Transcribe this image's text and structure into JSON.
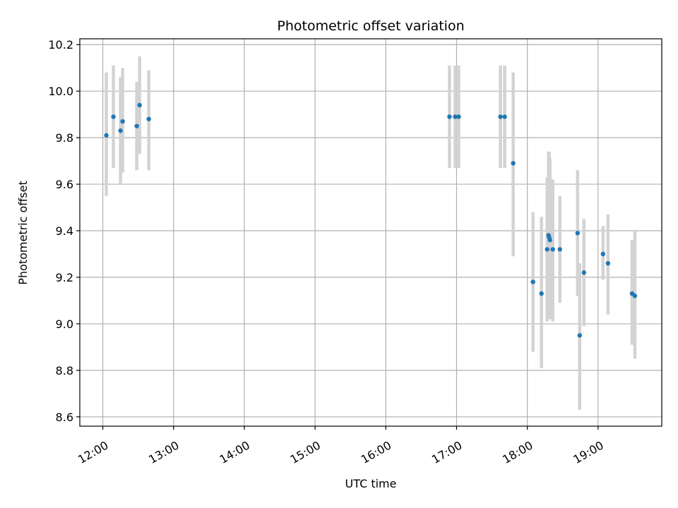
{
  "chart_data": {
    "type": "scatter",
    "title": "Photometric offset variation",
    "xlabel": "UTC time",
    "ylabel": "Photometric offset",
    "x_unit": "hours",
    "xlim": [
      11.675,
      19.9
    ],
    "ylim": [
      8.56,
      10.225
    ],
    "grid": true,
    "x_ticks": [
      {
        "value": 12,
        "label": "12:00"
      },
      {
        "value": 13,
        "label": "13:00"
      },
      {
        "value": 14,
        "label": "14:00"
      },
      {
        "value": 15,
        "label": "15:00"
      },
      {
        "value": 16,
        "label": "16:00"
      },
      {
        "value": 17,
        "label": "17:00"
      },
      {
        "value": 18,
        "label": "18:00"
      },
      {
        "value": 19,
        "label": "19:00"
      }
    ],
    "y_ticks": [
      {
        "value": 8.6,
        "label": "8.6"
      },
      {
        "value": 8.8,
        "label": "8.8"
      },
      {
        "value": 9.0,
        "label": "9.0"
      },
      {
        "value": 9.2,
        "label": "9.2"
      },
      {
        "value": 9.4,
        "label": "9.4"
      },
      {
        "value": 9.6,
        "label": "9.6"
      },
      {
        "value": 9.8,
        "label": "9.8"
      },
      {
        "value": 10.0,
        "label": "10.0"
      },
      {
        "value": 10.2,
        "label": "10.2"
      }
    ],
    "colors": {
      "marker": "#1f77b4",
      "errorbar": "#d3d3d3",
      "grid": "#b0b0b0"
    },
    "points": [
      {
        "x": 12.05,
        "y": 9.81,
        "low": 9.55,
        "high": 10.08
      },
      {
        "x": 12.15,
        "y": 9.89,
        "low": 9.67,
        "high": 10.11
      },
      {
        "x": 12.25,
        "y": 9.83,
        "low": 9.6,
        "high": 10.06
      },
      {
        "x": 12.28,
        "y": 9.87,
        "low": 9.65,
        "high": 10.1
      },
      {
        "x": 12.48,
        "y": 9.85,
        "low": 9.66,
        "high": 10.04
      },
      {
        "x": 12.52,
        "y": 9.94,
        "low": 9.73,
        "high": 10.15
      },
      {
        "x": 12.65,
        "y": 9.88,
        "low": 9.66,
        "high": 10.09
      },
      {
        "x": 16.9,
        "y": 9.89,
        "low": 9.67,
        "high": 10.11
      },
      {
        "x": 16.98,
        "y": 9.89,
        "low": 9.67,
        "high": 10.11
      },
      {
        "x": 17.03,
        "y": 9.89,
        "low": 9.67,
        "high": 10.11
      },
      {
        "x": 17.62,
        "y": 9.89,
        "low": 9.67,
        "high": 10.11
      },
      {
        "x": 17.68,
        "y": 9.89,
        "low": 9.67,
        "high": 10.11
      },
      {
        "x": 17.8,
        "y": 9.69,
        "low": 9.29,
        "high": 10.08
      },
      {
        "x": 18.08,
        "y": 9.18,
        "low": 8.88,
        "high": 9.48
      },
      {
        "x": 18.2,
        "y": 9.13,
        "low": 8.81,
        "high": 9.46
      },
      {
        "x": 18.28,
        "y": 9.32,
        "low": 9.01,
        "high": 9.63
      },
      {
        "x": 18.3,
        "y": 9.38,
        "low": 9.04,
        "high": 9.74
      },
      {
        "x": 18.31,
        "y": 9.37,
        "low": 9.03,
        "high": 9.74
      },
      {
        "x": 18.32,
        "y": 9.36,
        "low": 9.02,
        "high": 9.71
      },
      {
        "x": 18.36,
        "y": 9.32,
        "low": 9.01,
        "high": 9.62
      },
      {
        "x": 18.46,
        "y": 9.32,
        "low": 9.09,
        "high": 9.55
      },
      {
        "x": 18.71,
        "y": 9.39,
        "low": 9.12,
        "high": 9.66
      },
      {
        "x": 18.74,
        "y": 8.95,
        "low": 8.63,
        "high": 9.26
      },
      {
        "x": 18.8,
        "y": 9.22,
        "low": 8.99,
        "high": 9.45
      },
      {
        "x": 19.07,
        "y": 9.3,
        "low": 9.19,
        "high": 9.42
      },
      {
        "x": 19.14,
        "y": 9.26,
        "low": 9.04,
        "high": 9.47
      },
      {
        "x": 19.48,
        "y": 9.13,
        "low": 8.91,
        "high": 9.36
      },
      {
        "x": 19.52,
        "y": 9.12,
        "low": 8.85,
        "high": 9.4
      }
    ]
  }
}
